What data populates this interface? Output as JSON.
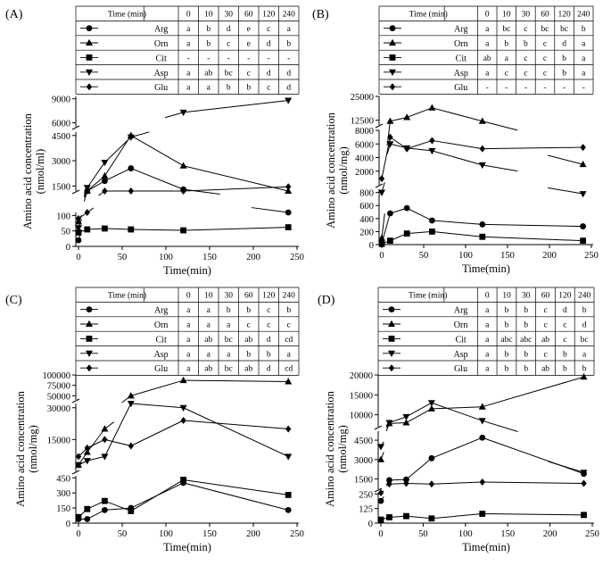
{
  "chart_data": [
    {
      "panel": "(A)",
      "type": "line",
      "times_header": [
        "Time (min)",
        "0",
        "10",
        "30",
        "60",
        "120",
        "240"
      ],
      "x": [
        0,
        10,
        30,
        60,
        120,
        240
      ],
      "xlim": [
        0,
        250
      ],
      "xticks": [
        "0",
        "50",
        "100",
        "150",
        "200",
        "250"
      ],
      "xlabel": "Time(min)",
      "ylabel": "Amino acid concentration (nmol/ml)",
      "yticks": [
        "0",
        "50",
        "100",
        "1500",
        "3000",
        "4500",
        "6000",
        "9000"
      ],
      "series": [
        {
          "name": "Arg",
          "marker": "circle",
          "values": [
            20,
            700,
            1800,
            2550,
            1300,
            450
          ],
          "letters": [
            "a",
            "b",
            "d",
            "e",
            "c",
            "a"
          ]
        },
        {
          "name": "Orn",
          "marker": "triangle",
          "values": [
            80,
            1000,
            2100,
            4500,
            2700,
            850
          ],
          "letters": [
            "a",
            "b",
            "c",
            "e",
            "d",
            "b"
          ]
        },
        {
          "name": "Cit",
          "marker": "square",
          "values": [
            45,
            55,
            58,
            55,
            52,
            62
          ],
          "letters": [
            "-",
            "-",
            "-",
            "-",
            "-",
            "-"
          ]
        },
        {
          "name": "Asp",
          "marker": "triangle-down",
          "values": [
            60,
            1400,
            2900,
            4400,
            7300,
            8800
          ],
          "letters": [
            "a",
            "ab",
            "bc",
            "c",
            "d",
            "d"
          ]
        },
        {
          "name": "Glu",
          "marker": "diamond",
          "values": [
            90,
            500,
            750,
            950,
            1200,
            1450
          ],
          "letters": [
            "a",
            "a",
            "b",
            "b",
            "c",
            "d"
          ]
        }
      ]
    },
    {
      "panel": "(B)",
      "type": "line",
      "times_header": [
        "Time (min)",
        "0",
        "10",
        "30",
        "60",
        "120",
        "240"
      ],
      "x": [
        0,
        10,
        30,
        60,
        120,
        240
      ],
      "xlim": [
        0,
        250
      ],
      "xticks": [
        "0",
        "50",
        "100",
        "150",
        "200",
        "250"
      ],
      "xlabel": "Time(min)",
      "ylabel": "Amino acid concentration (nmol/mg)",
      "yticks": [
        "0",
        "200",
        "400",
        "600",
        "800",
        "2000",
        "4000",
        "6000",
        "8000",
        "12500",
        "25000"
      ],
      "series": [
        {
          "name": "Arg",
          "marker": "circle",
          "values": [
            20,
            480,
            560,
            370,
            310,
            280
          ],
          "letters": [
            "a",
            "bc",
            "c",
            "bc",
            "bc",
            "b"
          ]
        },
        {
          "name": "Orn",
          "marker": "triangle",
          "values": [
            100,
            12000,
            14000,
            19000,
            12000,
            3000
          ],
          "letters": [
            "a",
            "b",
            "b",
            "c",
            "d",
            "a"
          ]
        },
        {
          "name": "Cit",
          "marker": "square",
          "values": [
            10,
            60,
            170,
            200,
            120,
            60
          ],
          "letters": [
            "ab",
            "a",
            "c",
            "c",
            "b",
            "a"
          ]
        },
        {
          "name": "Asp",
          "marker": "triangle-down",
          "values": [
            800,
            6000,
            5400,
            5000,
            2900,
            780
          ],
          "letters": [
            "a",
            "c",
            "c",
            "c",
            "b",
            "a"
          ]
        },
        {
          "name": "Glu",
          "marker": "diamond",
          "values": [
            900,
            7000,
            5300,
            6500,
            5300,
            5500
          ],
          "letters": [
            "-",
            "-",
            "-",
            "-",
            "-",
            "-"
          ]
        }
      ]
    },
    {
      "panel": "(C)",
      "type": "line",
      "times_header": [
        "Time (min)",
        "0",
        "10",
        "30",
        "60",
        "120",
        "240"
      ],
      "x": [
        0,
        10,
        30,
        60,
        120,
        240
      ],
      "xlim": [
        0,
        250
      ],
      "xticks": [
        "0",
        "50",
        "100",
        "150",
        "200",
        "250"
      ],
      "xlabel": "Time(min)",
      "ylabel": "Amino acid concentration (nmol/mg)",
      "yticks": [
        "0",
        "150",
        "300",
        "450",
        "15000",
        "30000",
        "50000",
        "75000",
        "100000"
      ],
      "series": [
        {
          "name": "Arg",
          "marker": "circle",
          "values": [
            40,
            40,
            130,
            150,
            400,
            130
          ],
          "letters": [
            "a",
            "a",
            "b",
            "b",
            "c",
            "b"
          ]
        },
        {
          "name": "Orn",
          "marker": "triangle",
          "values": [
            3000,
            9000,
            20000,
            50000,
            87000,
            84000
          ],
          "letters": [
            "a",
            "a",
            "a",
            "c",
            "c",
            "c"
          ]
        },
        {
          "name": "Cit",
          "marker": "square",
          "values": [
            60,
            140,
            220,
            120,
            430,
            280
          ],
          "letters": [
            "a",
            "ab",
            "bc",
            "ab",
            "d",
            "cd"
          ]
        },
        {
          "name": "Asp",
          "marker": "triangle-down",
          "values": [
            3000,
            5000,
            7000,
            32000,
            30000,
            7000
          ],
          "letters": [
            "a",
            "a",
            "a",
            "b",
            "b",
            "a"
          ]
        },
        {
          "name": "Glu",
          "marker": "diamond",
          "values": [
            7000,
            11000,
            15000,
            12000,
            24000,
            20000
          ],
          "letters": [
            "a",
            "ab",
            "bc",
            "ab",
            "d",
            "cd"
          ]
        }
      ]
    },
    {
      "panel": "(D)",
      "type": "line",
      "times_header": [
        "Time (min)",
        "0",
        "10",
        "30",
        "60",
        "120",
        "240"
      ],
      "x": [
        0,
        10,
        30,
        60,
        120,
        240
      ],
      "xlim": [
        0,
        250
      ],
      "xticks": [
        "0",
        "50",
        "100",
        "150",
        "200",
        "250"
      ],
      "xlabel": "Time(min)",
      "ylabel": "Amino acid concentration (nmol/mg)",
      "yticks": [
        "0",
        "125",
        "250",
        "1500",
        "3000",
        "4500",
        "10000",
        "15000",
        "20000"
      ],
      "series": [
        {
          "name": "Arg",
          "marker": "circle",
          "values": [
            190,
            1400,
            1450,
            3100,
            4700,
            1900
          ],
          "letters": [
            "a",
            "b",
            "b",
            "c",
            "d",
            "b"
          ]
        },
        {
          "name": "Orn",
          "marker": "triangle",
          "values": [
            3000,
            7800,
            8000,
            11500,
            12000,
            19500
          ],
          "letters": [
            "a",
            "b",
            "b",
            "c",
            "c",
            "d"
          ]
        },
        {
          "name": "Cit",
          "marker": "square",
          "values": [
            30,
            50,
            60,
            40,
            80,
            70
          ],
          "letters": [
            "a",
            "abc",
            "abc",
            "ab",
            "c",
            "bc"
          ]
        },
        {
          "name": "Asp",
          "marker": "triangle-down",
          "values": [
            4000,
            8000,
            9500,
            13000,
            8500,
            2000
          ],
          "letters": [
            "a",
            "b",
            "b",
            "c",
            "b",
            "a"
          ]
        },
        {
          "name": "Glu",
          "marker": "diamond",
          "values": [
            400,
            1100,
            1150,
            1100,
            1250,
            1150
          ],
          "letters": [
            "a",
            "b",
            "b",
            "ab",
            "b",
            "b"
          ]
        }
      ]
    }
  ]
}
